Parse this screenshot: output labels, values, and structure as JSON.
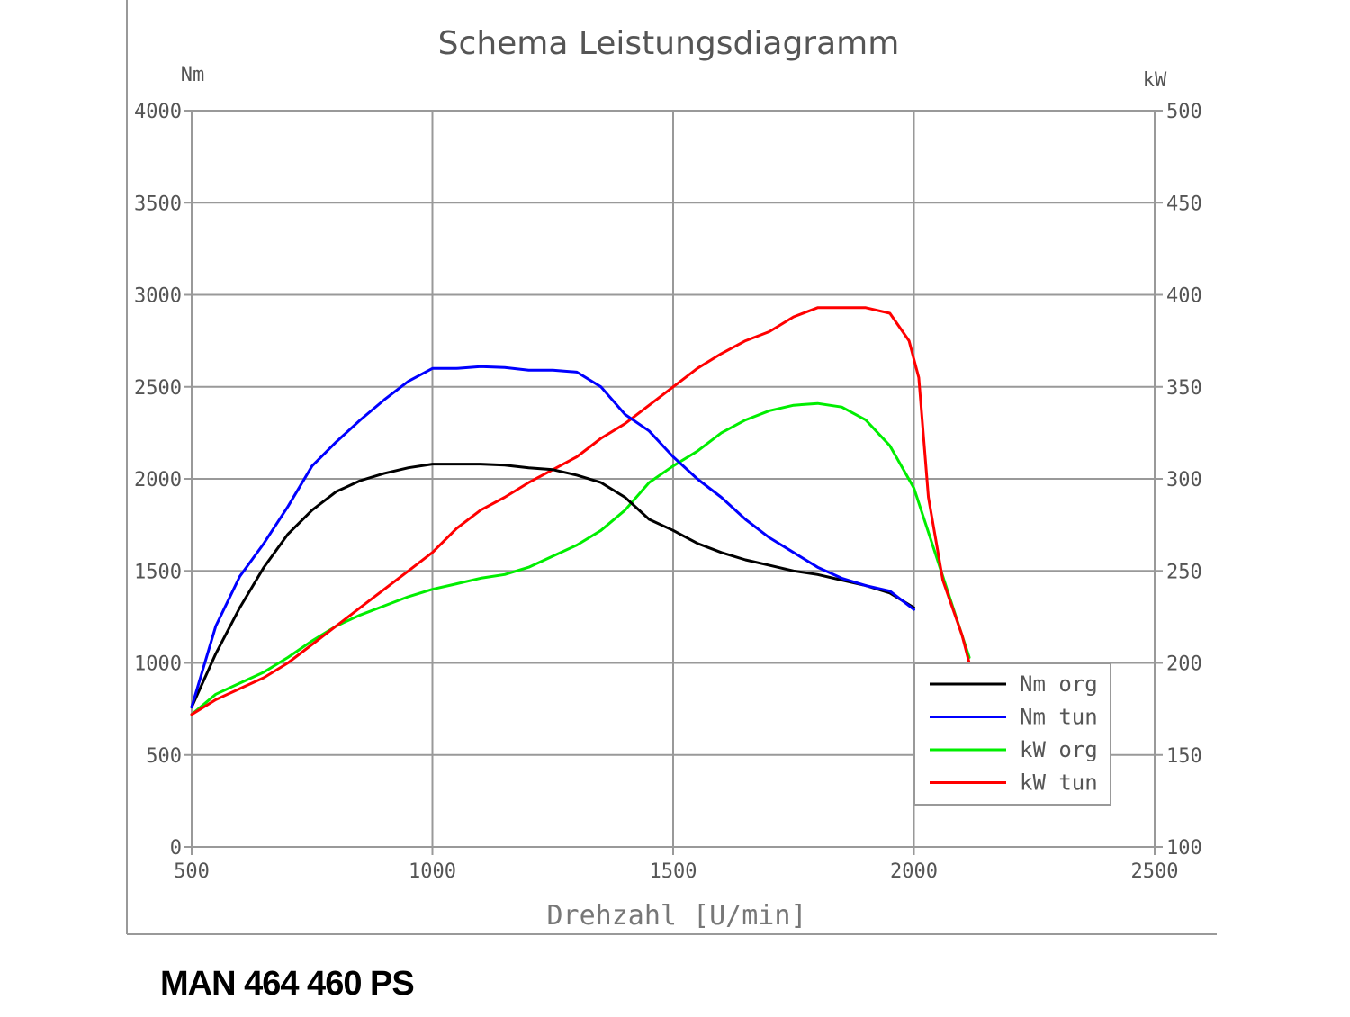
{
  "caption": "MAN 464 460 PS",
  "chart_data": {
    "type": "line",
    "title": "Schema Leistungsdiagramm",
    "xlabel": "Drehzahl [U/min]",
    "ylabel_left": "Nm",
    "ylabel_right": "kW",
    "xlim": [
      500,
      2500
    ],
    "ylim_left": [
      0,
      4000
    ],
    "ylim_right": [
      100,
      500
    ],
    "x_ticks": [
      500,
      1000,
      1500,
      2000,
      2500
    ],
    "y_left_ticks": [
      0,
      500,
      1000,
      1500,
      2000,
      2500,
      3000,
      3500,
      4000
    ],
    "y_right_ticks": [
      100,
      150,
      200,
      250,
      300,
      350,
      400,
      450,
      500
    ],
    "grid": true,
    "legend_position": "bottom-right",
    "series": [
      {
        "name": "Nm org",
        "axis": "left",
        "color": "#000000",
        "x": [
          500,
          550,
          600,
          650,
          700,
          750,
          800,
          850,
          900,
          950,
          1000,
          1050,
          1100,
          1150,
          1200,
          1250,
          1300,
          1350,
          1400,
          1450,
          1500,
          1550,
          1600,
          1650,
          1700,
          1750,
          1800,
          1850,
          1900,
          1950,
          2000
        ],
        "y": [
          760,
          1050,
          1300,
          1520,
          1700,
          1830,
          1930,
          1990,
          2030,
          2060,
          2080,
          2080,
          2080,
          2075,
          2060,
          2050,
          2020,
          1980,
          1900,
          1780,
          1720,
          1650,
          1600,
          1560,
          1530,
          1500,
          1480,
          1450,
          1420,
          1380,
          1300
        ]
      },
      {
        "name": "Nm tun",
        "axis": "left",
        "color": "#0000ff",
        "x": [
          500,
          550,
          600,
          650,
          700,
          750,
          800,
          850,
          900,
          950,
          1000,
          1050,
          1100,
          1150,
          1200,
          1250,
          1300,
          1350,
          1400,
          1450,
          1500,
          1550,
          1600,
          1650,
          1700,
          1750,
          1800,
          1850,
          1900,
          1950,
          2000
        ],
        "y": [
          760,
          1200,
          1470,
          1650,
          1850,
          2070,
          2200,
          2320,
          2430,
          2530,
          2600,
          2600,
          2610,
          2605,
          2590,
          2590,
          2580,
          2500,
          2350,
          2260,
          2120,
          2000,
          1900,
          1780,
          1680,
          1600,
          1520,
          1460,
          1420,
          1390,
          1290
        ]
      },
      {
        "name": "kW org",
        "axis": "right",
        "color": "#00ee00",
        "x": [
          500,
          550,
          600,
          650,
          700,
          750,
          800,
          850,
          900,
          950,
          1000,
          1050,
          1100,
          1150,
          1200,
          1250,
          1300,
          1350,
          1400,
          1450,
          1500,
          1550,
          1600,
          1650,
          1700,
          1750,
          1800,
          1850,
          1900,
          1950,
          2000,
          2050,
          2100,
          2115
        ],
        "y": [
          172,
          183,
          189,
          195,
          203,
          212,
          220,
          226,
          231,
          236,
          240,
          243,
          246,
          248,
          252,
          258,
          264,
          272,
          283,
          298,
          307,
          315,
          325,
          332,
          337,
          340,
          341,
          339,
          332,
          318,
          295,
          255,
          215,
          203
        ]
      },
      {
        "name": "kW tun",
        "axis": "right",
        "color": "#ff0000",
        "x": [
          500,
          550,
          600,
          650,
          700,
          750,
          800,
          850,
          900,
          950,
          1000,
          1050,
          1100,
          1150,
          1200,
          1250,
          1300,
          1350,
          1400,
          1450,
          1500,
          1550,
          1600,
          1650,
          1700,
          1750,
          1800,
          1850,
          1900,
          1950,
          1990,
          2010,
          2030,
          2060,
          2100,
          2115
        ],
        "y": [
          172,
          180,
          186,
          192,
          200,
          210,
          220,
          230,
          240,
          250,
          260,
          273,
          283,
          290,
          298,
          305,
          312,
          322,
          330,
          340,
          350,
          360,
          368,
          375,
          380,
          388,
          393,
          393,
          393,
          390,
          375,
          355,
          290,
          245,
          215,
          200
        ]
      }
    ]
  }
}
